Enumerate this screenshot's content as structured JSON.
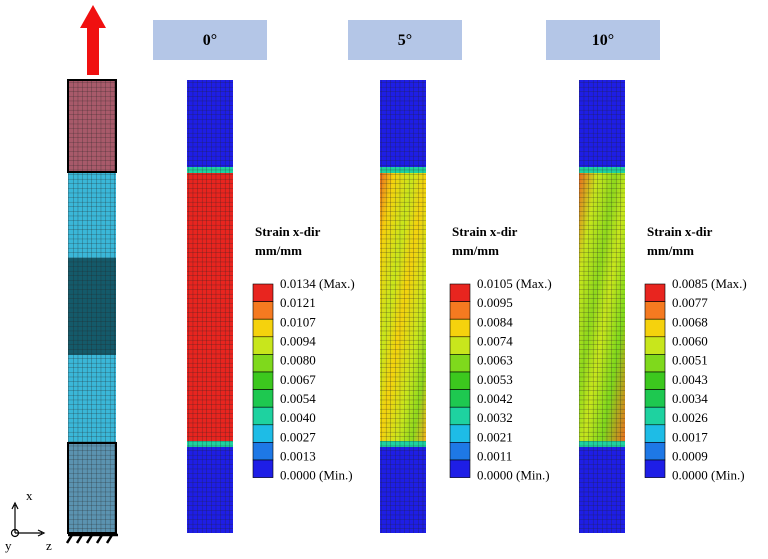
{
  "panels": [
    {
      "label": "0°",
      "legend": {
        "title": "Strain x-dir",
        "unit": "mm/mm",
        "levels": [
          "0.0134 (Max.)",
          "0.0121",
          "0.0107",
          "0.0094",
          "0.0080",
          "0.0067",
          "0.0054",
          "0.0040",
          "0.0027",
          "0.0013",
          "0.0000 (Min.)"
        ]
      }
    },
    {
      "label": "5°",
      "legend": {
        "title": "Strain x-dir",
        "unit": "mm/mm",
        "levels": [
          "0.0105 (Max.)",
          "0.0095",
          "0.0084",
          "0.0074",
          "0.0063",
          "0.0053",
          "0.0042",
          "0.0032",
          "0.0021",
          "0.0011",
          "0.0000 (Min.)"
        ]
      }
    },
    {
      "label": "10°",
      "legend": {
        "title": "Strain x-dir",
        "unit": "mm/mm",
        "levels": [
          "0.0085 (Max.)",
          "0.0077",
          "0.0068",
          "0.0060",
          "0.0051",
          "0.0043",
          "0.0034",
          "0.0026",
          "0.0017",
          "0.0009",
          "0.0000 (Min.)"
        ]
      }
    }
  ],
  "legend_colors": [
    "#e8251f",
    "#f57a20",
    "#f5d20d",
    "#c8e61c",
    "#7fd91c",
    "#3cc81e",
    "#1ec850",
    "#1ed2a0",
    "#1ebce6",
    "#1e78e6",
    "#1e1ee6"
  ],
  "axes": {
    "x": "x",
    "y": "y",
    "z": "z"
  }
}
